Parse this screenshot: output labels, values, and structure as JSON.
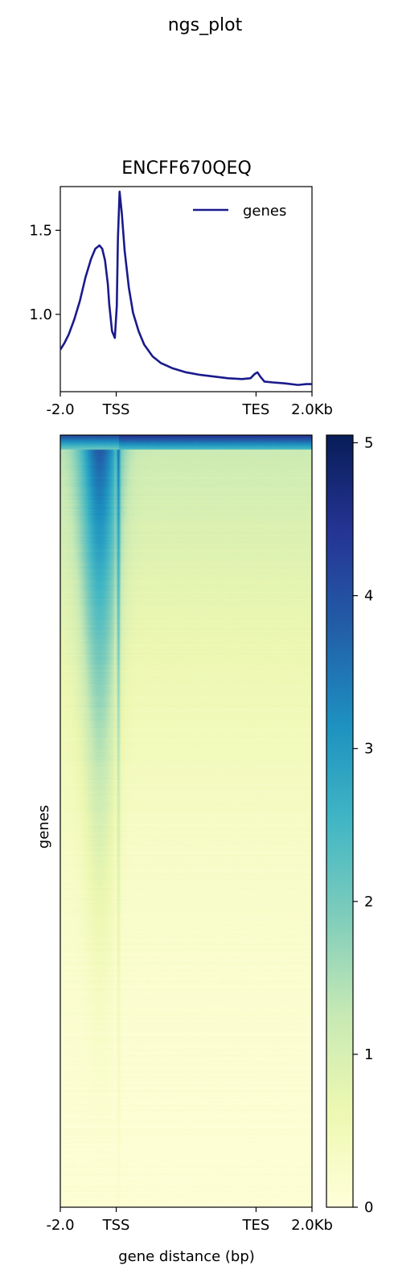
{
  "figure": {
    "suptitle": "ngs_plot"
  },
  "chart_data": [
    {
      "type": "line",
      "title": "ENCFF670QEQ",
      "xlabel": "",
      "ylabel": "",
      "x_ticks": [
        "-2.0",
        "TSS",
        "TES",
        "2.0Kb"
      ],
      "x_tick_pos": [
        0,
        2000,
        7000,
        9000
      ],
      "y_ticks": [
        1.0,
        1.5
      ],
      "y_tick_labels": [
        "1.0",
        "1.5"
      ],
      "xlim": [
        0,
        9000
      ],
      "ylim": [
        0.54,
        1.76
      ],
      "legend": {
        "placement": "upper right",
        "entries": [
          "genes"
        ]
      },
      "series": [
        {
          "name": "genes",
          "color": "#1a1a8c",
          "x": [
            0,
            150,
            300,
            500,
            700,
            900,
            1100,
            1250,
            1400,
            1500,
            1600,
            1700,
            1750,
            1850,
            1950,
            2020,
            2060,
            2120,
            2200,
            2300,
            2450,
            2600,
            2800,
            3000,
            3300,
            3600,
            4000,
            4500,
            5000,
            5500,
            6000,
            6500,
            6800,
            6950,
            7050,
            7150,
            7300,
            7600,
            8000,
            8500,
            8800,
            9000
          ],
          "y": [
            0.79,
            0.83,
            0.88,
            0.97,
            1.08,
            1.22,
            1.33,
            1.39,
            1.41,
            1.39,
            1.32,
            1.18,
            1.06,
            0.9,
            0.86,
            1.05,
            1.45,
            1.73,
            1.6,
            1.38,
            1.16,
            1.01,
            0.9,
            0.82,
            0.75,
            0.71,
            0.68,
            0.655,
            0.64,
            0.63,
            0.62,
            0.615,
            0.62,
            0.645,
            0.655,
            0.63,
            0.6,
            0.595,
            0.59,
            0.58,
            0.585,
            0.585
          ]
        }
      ]
    },
    {
      "type": "heatmap",
      "title": "",
      "xlabel": "gene distance (bp)",
      "ylabel": "genes",
      "x_ticks": [
        "-2.0",
        "TSS",
        "TES",
        "2.0Kb"
      ],
      "x_tick_pos": [
        0,
        2000,
        7000,
        9000
      ],
      "xlim": [
        0,
        9000
      ],
      "colormap": "YlGnBu",
      "colorbar": {
        "ticks": [
          0,
          1,
          2,
          3,
          4,
          5
        ],
        "tick_labels": [
          "0",
          "1",
          "2",
          "3",
          "4",
          "5"
        ],
        "vmin": 0,
        "vmax": 5.05
      },
      "pattern": {
        "description_levels": "signal sorted descending by row; enrichment upstream of TSS and a narrow band at TSS",
        "top_row_level": 4.5,
        "background_level_top": 1.5,
        "background_level_bottom": 0.1,
        "upstream_peak_center": 1400,
        "tss_band_center": 2080
      }
    }
  ]
}
